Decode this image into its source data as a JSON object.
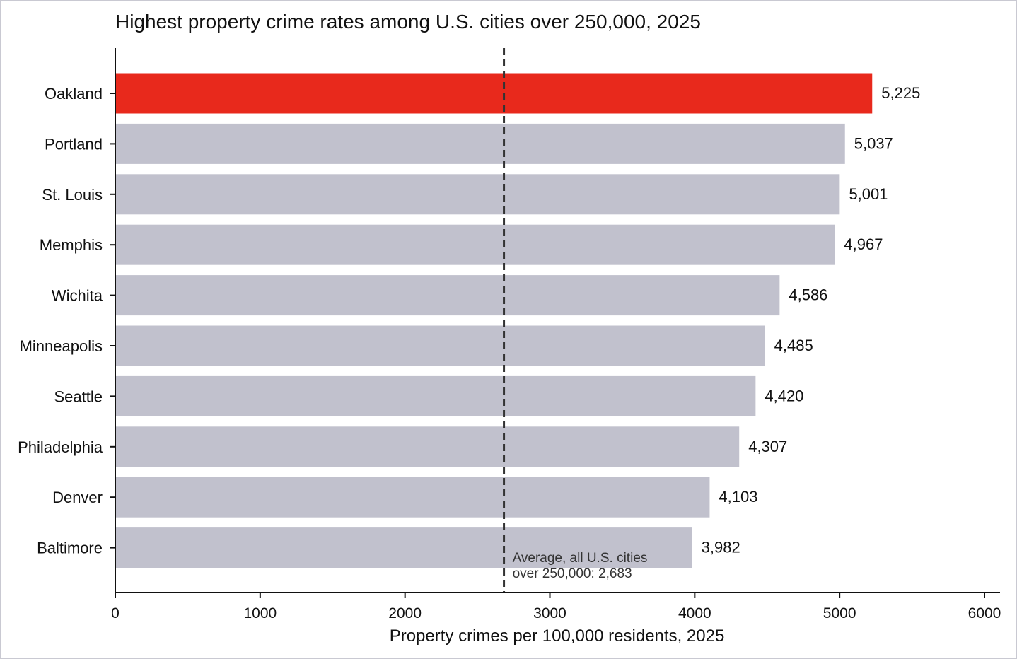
{
  "chart_data": {
    "type": "bar",
    "orientation": "horizontal",
    "title": "Highest property crime rates among U.S. cities over 250,000, 2025",
    "xlabel": "Property crimes per 100,000 residents, 2025",
    "ylabel": "",
    "xlim": [
      0,
      6000
    ],
    "x_ticks": [
      0,
      1000,
      2000,
      3000,
      4000,
      5000,
      6000
    ],
    "x_tick_labels": [
      "0",
      "1000",
      "2000",
      "3000",
      "4000",
      "5000",
      "6000"
    ],
    "grid": false,
    "categories": [
      "Oakland",
      "Portland",
      "St. Louis",
      "Memphis",
      "Wichita",
      "Minneapolis",
      "Seattle",
      "Philadelphia",
      "Denver",
      "Baltimore"
    ],
    "values": [
      5225,
      5037,
      5001,
      4967,
      4586,
      4485,
      4420,
      4307,
      4103,
      3982
    ],
    "value_labels": [
      "5,225",
      "5,037",
      "5,001",
      "4,967",
      "4,586",
      "4,485",
      "4,420",
      "4,307",
      "4,103",
      "3,982"
    ],
    "highlight_category": "Oakland",
    "colors": {
      "highlight": "#e8291c",
      "bar": "#c1c1cd",
      "average_line": "#333333"
    },
    "reference_line": {
      "value": 2683,
      "style": "dashed",
      "label_line1": "Average, all U.S. cities",
      "label_line2": "over 250,000: 2,683"
    }
  }
}
